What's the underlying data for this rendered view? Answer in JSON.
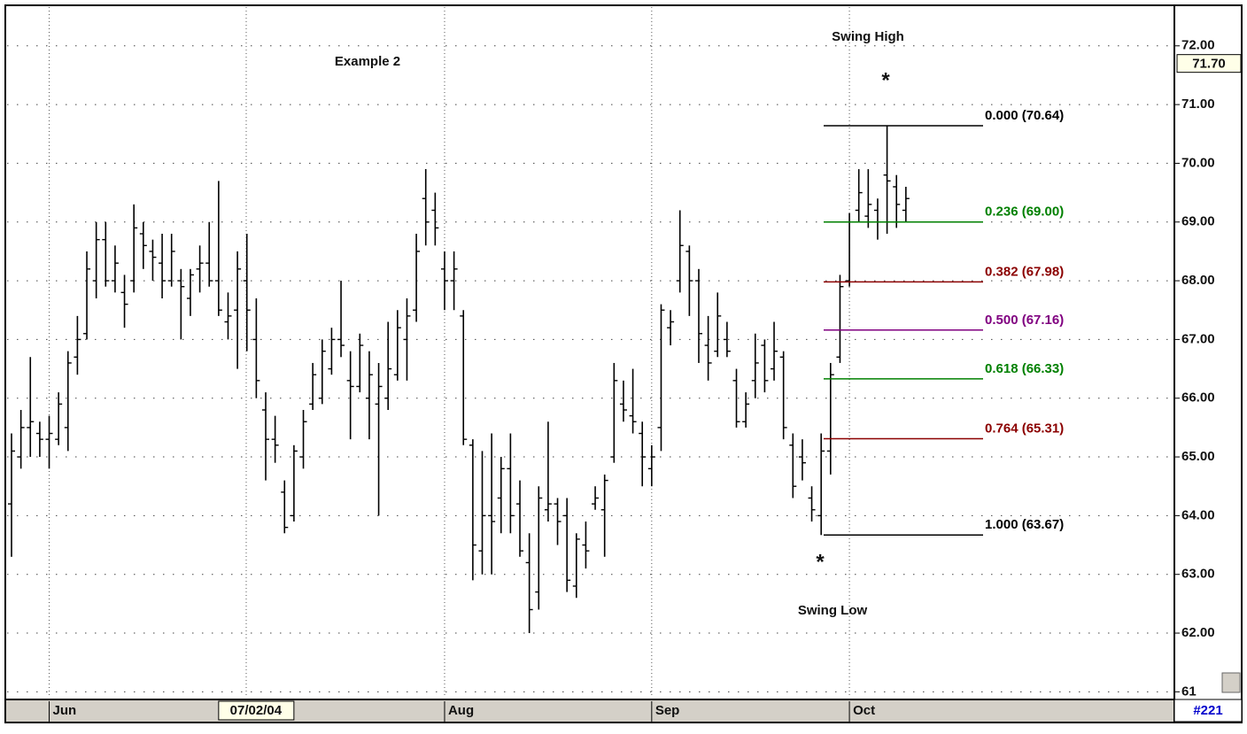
{
  "chart_data": {
    "type": "ohlc",
    "color": "#000000",
    "annotations": [
      "Example 2",
      "Swing High",
      "*",
      "*",
      "Swing Low"
    ],
    "categories": [
      null,
      null,
      null,
      null,
      "Jun",
      null,
      null,
      null,
      null,
      null,
      null,
      null,
      null,
      null,
      null,
      null,
      null,
      null,
      null,
      null,
      null,
      null,
      "07/02/04",
      null,
      null,
      null,
      null,
      null,
      null,
      null,
      null,
      null,
      null,
      null,
      null,
      null,
      null,
      null,
      null,
      null,
      null,
      null,
      null,
      null,
      null,
      null,
      "Aug",
      null,
      null,
      null,
      null,
      null,
      null,
      null,
      null,
      null,
      null,
      null,
      null,
      null,
      null,
      null,
      null,
      null,
      null,
      null,
      null,
      null,
      "Sep",
      null,
      null,
      null,
      null,
      null,
      null,
      null,
      null,
      null,
      null,
      null,
      null,
      null,
      null,
      null,
      null,
      null,
      null,
      null,
      null,
      "Oct",
      null,
      null,
      null,
      null,
      null,
      null
    ],
    "open": [
      64.2,
      65.0,
      65.5,
      65.4,
      65.3,
      65.3,
      65.5,
      66.7,
      67.1,
      68.0,
      68.7,
      68.0,
      67.8,
      68.0,
      68.8,
      68.5,
      68.3,
      68.0,
      68.0,
      67.7,
      68.2,
      68.3,
      68.0,
      67.3,
      67.5,
      68.0,
      67.0,
      65.8,
      65.3,
      64.4,
      64.0,
      65.0,
      65.9,
      66.0,
      66.5,
      67.0,
      66.3,
      66.2,
      66.0,
      65.9,
      66.0,
      66.4,
      67.0,
      67.5,
      69.4,
      69.2,
      68.2,
      68.0,
      67.4,
      65.2,
      63.4,
      64.0,
      64.3,
      64.8,
      64.2,
      63.2,
      62.7,
      64.1,
      64.2,
      64.0,
      62.8,
      63.5,
      64.2,
      64.1,
      65.0,
      65.9,
      65.7,
      65.4,
      64.8,
      65.5,
      67.2,
      68.0,
      68.5,
      68.0,
      66.9,
      66.8,
      67.0,
      66.3,
      65.6,
      66.3,
      66.9,
      66.5,
      66.7,
      65.2,
      65.0,
      64.3,
      64.0,
      65.1,
      66.7,
      68.0,
      69.2,
      69.1,
      69.2,
      69.8,
      69.6,
      69.2
    ],
    "high": [
      65.4,
      65.8,
      66.7,
      65.6,
      65.7,
      66.1,
      66.8,
      67.4,
      68.5,
      69.0,
      69.0,
      68.6,
      68.1,
      69.3,
      69.0,
      68.7,
      68.8,
      68.8,
      68.2,
      68.2,
      68.6,
      69.0,
      69.7,
      67.8,
      68.5,
      68.8,
      67.7,
      66.1,
      65.7,
      64.6,
      65.2,
      65.8,
      66.6,
      67.0,
      67.2,
      68.0,
      66.8,
      67.1,
      66.8,
      66.6,
      67.3,
      67.5,
      67.7,
      68.8,
      69.9,
      69.5,
      68.5,
      68.5,
      67.5,
      65.3,
      65.1,
      65.4,
      65.0,
      65.4,
      64.6,
      63.7,
      64.5,
      65.6,
      64.3,
      64.3,
      63.7,
      63.9,
      64.5,
      64.7,
      66.6,
      66.3,
      66.5,
      65.6,
      65.2,
      67.6,
      67.5,
      69.2,
      68.6,
      68.2,
      67.4,
      67.8,
      67.3,
      66.5,
      66.1,
      67.1,
      67.0,
      67.3,
      66.8,
      65.4,
      65.3,
      64.5,
      65.4,
      66.6,
      68.1,
      69.15,
      69.9,
      69.9,
      69.4,
      70.64,
      69.8,
      69.6
    ],
    "low": [
      63.3,
      64.8,
      65.0,
      65.0,
      64.8,
      65.2,
      65.1,
      66.4,
      67.0,
      67.7,
      67.9,
      67.8,
      67.2,
      67.8,
      68.2,
      68.0,
      67.7,
      67.9,
      67.0,
      67.4,
      67.8,
      67.9,
      67.4,
      67.0,
      66.5,
      66.8,
      66.0,
      64.6,
      64.9,
      63.7,
      63.9,
      64.8,
      65.8,
      65.9,
      66.4,
      66.7,
      65.3,
      66.1,
      65.3,
      64.0,
      65.8,
      66.3,
      66.3,
      67.3,
      68.6,
      68.6,
      67.5,
      67.5,
      65.2,
      62.9,
      63.0,
      63.0,
      63.7,
      63.7,
      63.3,
      62.0,
      62.4,
      63.9,
      63.5,
      62.7,
      62.6,
      63.1,
      64.1,
      63.3,
      64.9,
      65.6,
      65.4,
      64.5,
      64.5,
      65.1,
      66.9,
      67.8,
      67.4,
      66.6,
      66.3,
      66.7,
      66.7,
      65.5,
      65.5,
      66.0,
      66.1,
      66.3,
      65.3,
      64.3,
      64.6,
      63.9,
      63.67,
      64.7,
      66.6,
      67.9,
      69.0,
      68.9,
      68.7,
      68.8,
      68.9,
      69.0
    ],
    "close": [
      65.1,
      65.5,
      65.6,
      65.3,
      65.4,
      65.9,
      66.6,
      67.0,
      68.2,
      68.7,
      68.0,
      68.3,
      67.6,
      68.9,
      68.6,
      68.4,
      68.0,
      68.5,
      67.9,
      68.1,
      68.3,
      68.0,
      67.5,
      67.4,
      68.2,
      67.5,
      66.3,
      65.3,
      65.2,
      63.8,
      65.1,
      65.6,
      66.4,
      66.8,
      67.0,
      66.9,
      66.2,
      66.9,
      66.4,
      66.2,
      66.5,
      67.2,
      67.4,
      68.5,
      69.0,
      68.9,
      68.0,
      68.2,
      65.3,
      63.5,
      64.0,
      63.9,
      64.8,
      64.0,
      63.4,
      62.4,
      64.3,
      64.2,
      63.9,
      62.9,
      63.6,
      63.4,
      64.3,
      64.6,
      66.3,
      65.8,
      65.6,
      65.0,
      65.0,
      67.5,
      67.3,
      68.6,
      68.0,
      67.1,
      66.6,
      67.4,
      66.8,
      65.6,
      65.9,
      66.6,
      66.3,
      66.8,
      65.5,
      64.5,
      64.9,
      64.1,
      65.1,
      66.4,
      67.9,
      69.0,
      69.5,
      69.3,
      69.0,
      69.7,
      69.3,
      69.4
    ],
    "ylim": [
      60.9,
      72.66
    ],
    "yticks": [
      {
        "value": 61,
        "label": "61"
      },
      {
        "value": 62,
        "label": "62.00"
      },
      {
        "value": 63,
        "label": "63.00"
      },
      {
        "value": 64,
        "label": "64.00"
      },
      {
        "value": 65,
        "label": "65.00"
      },
      {
        "value": 66,
        "label": "66.00"
      },
      {
        "value": 67,
        "label": "67.00"
      },
      {
        "value": 68,
        "label": "68.00"
      },
      {
        "value": 69,
        "label": "69.00"
      },
      {
        "value": 70,
        "label": "70.00"
      },
      {
        "value": 71,
        "label": "71.00"
      },
      {
        "value": 72,
        "label": "72.00"
      }
    ],
    "grid": true,
    "cursor_price": {
      "value": 71.7,
      "label": "71.70"
    },
    "fib_levels": [
      {
        "label": "0.000 (70.64)",
        "value": 70.64,
        "color": "#000000"
      },
      {
        "label": "0.236 (69.00)",
        "value": 69.0,
        "color": "#008000"
      },
      {
        "label": "0.382 (67.98)",
        "value": 67.98,
        "color": "#8b0000"
      },
      {
        "label": "0.500 (67.16)",
        "value": 67.16,
        "color": "#800080"
      },
      {
        "label": "0.618 (66.33)",
        "value": 66.33,
        "color": "#008000"
      },
      {
        "label": "0.764 (65.31)",
        "value": 65.31,
        "color": "#8b0000"
      },
      {
        "label": "1.000 (63.67)",
        "value": 63.67,
        "color": "#000000"
      }
    ],
    "footer_label": "#221"
  }
}
